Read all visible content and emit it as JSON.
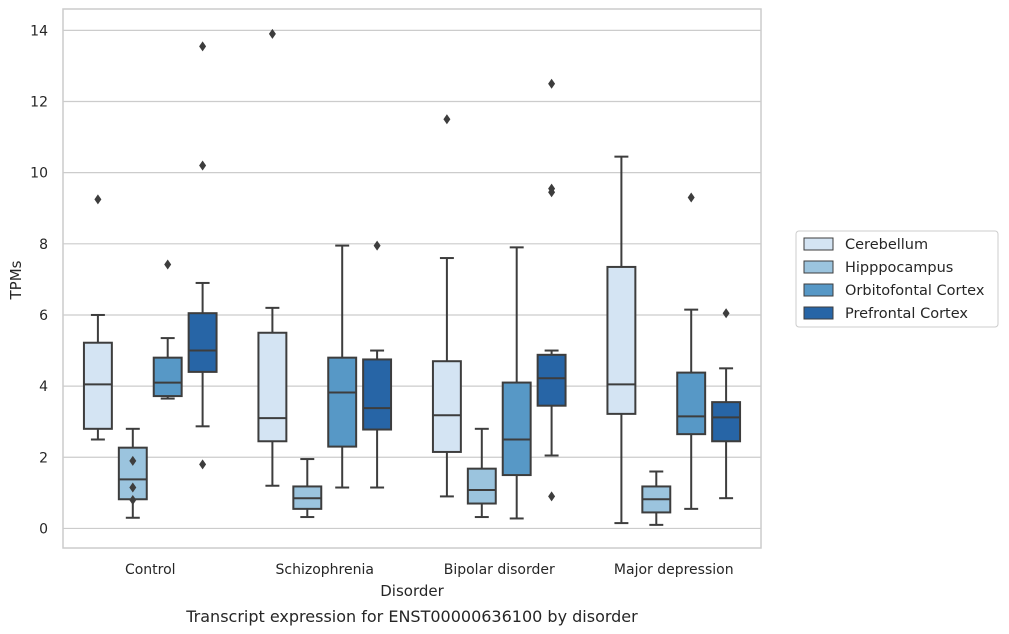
{
  "chart_data": {
    "type": "box",
    "title": "",
    "caption": "Transcript expression for ENST00000636100 by disorder",
    "xlabel": "Disorder",
    "ylabel": "TPMs",
    "ylim": [
      -0.55,
      14.6
    ],
    "yticks": [
      0,
      2,
      4,
      6,
      8,
      10,
      12,
      14
    ],
    "grid": "horizontal",
    "legend_position": "right",
    "categories": [
      "Control",
      "Schizophrenia",
      "Bipolar disorder",
      "Major depression"
    ],
    "series": [
      {
        "name": "Cerebellum",
        "color": "#d4e4f3",
        "boxes": [
          {
            "whislo": 2.5,
            "q1": 2.8,
            "med": 4.05,
            "q3": 5.22,
            "whishi": 6.0,
            "fliers": [
              9.25
            ]
          },
          {
            "whislo": 1.2,
            "q1": 2.45,
            "med": 3.1,
            "q3": 5.5,
            "whishi": 6.2,
            "fliers": [
              13.9
            ]
          },
          {
            "whislo": 0.9,
            "q1": 2.15,
            "med": 3.18,
            "q3": 4.7,
            "whishi": 7.6,
            "fliers": [
              11.5
            ]
          },
          {
            "whislo": 0.15,
            "q1": 3.22,
            "med": 4.05,
            "q3": 7.35,
            "whishi": 10.45,
            "fliers": []
          }
        ]
      },
      {
        "name": "Hipppocampus",
        "color": "#9bc4de",
        "boxes": [
          {
            "whislo": 0.3,
            "q1": 0.82,
            "med": 1.38,
            "q3": 2.27,
            "whishi": 2.8,
            "fliers": [
              1.9,
              1.15,
              0.8
            ]
          },
          {
            "whislo": 0.32,
            "q1": 0.55,
            "med": 0.85,
            "q3": 1.18,
            "whishi": 1.95,
            "fliers": []
          },
          {
            "whislo": 0.32,
            "q1": 0.7,
            "med": 1.08,
            "q3": 1.68,
            "whishi": 2.8,
            "fliers": []
          },
          {
            "whislo": 0.1,
            "q1": 0.45,
            "med": 0.82,
            "q3": 1.18,
            "whishi": 1.6,
            "fliers": []
          }
        ]
      },
      {
        "name": "Orbitofontal Cortex",
        "color": "#5798c6",
        "boxes": [
          {
            "whislo": 3.65,
            "q1": 3.72,
            "med": 4.1,
            "q3": 4.8,
            "whishi": 5.35,
            "fliers": [
              7.42
            ]
          },
          {
            "whislo": 1.15,
            "q1": 2.3,
            "med": 3.82,
            "q3": 4.8,
            "whishi": 7.95,
            "fliers": []
          },
          {
            "whislo": 0.28,
            "q1": 1.5,
            "med": 2.5,
            "q3": 4.1,
            "whishi": 7.9,
            "fliers": []
          },
          {
            "whislo": 0.55,
            "q1": 2.65,
            "med": 3.15,
            "q3": 4.38,
            "whishi": 6.15,
            "fliers": [
              9.3
            ]
          }
        ]
      },
      {
        "name": "Prefrontal Cortex",
        "color": "#2765a6",
        "boxes": [
          {
            "whislo": 2.87,
            "q1": 4.4,
            "med": 5.0,
            "q3": 6.05,
            "whishi": 6.9,
            "fliers": [
              13.55,
              10.2,
              1.8
            ]
          },
          {
            "whislo": 1.15,
            "q1": 2.78,
            "med": 3.38,
            "q3": 4.75,
            "whishi": 5.0,
            "fliers": [
              7.95
            ]
          },
          {
            "whislo": 2.05,
            "q1": 3.45,
            "med": 4.22,
            "q3": 4.88,
            "whishi": 5.0,
            "fliers": [
              12.5,
              9.55,
              9.45,
              0.9
            ]
          },
          {
            "whislo": 0.85,
            "q1": 2.45,
            "med": 3.12,
            "q3": 3.55,
            "whishi": 4.5,
            "fliers": [
              6.05
            ]
          }
        ]
      }
    ]
  }
}
